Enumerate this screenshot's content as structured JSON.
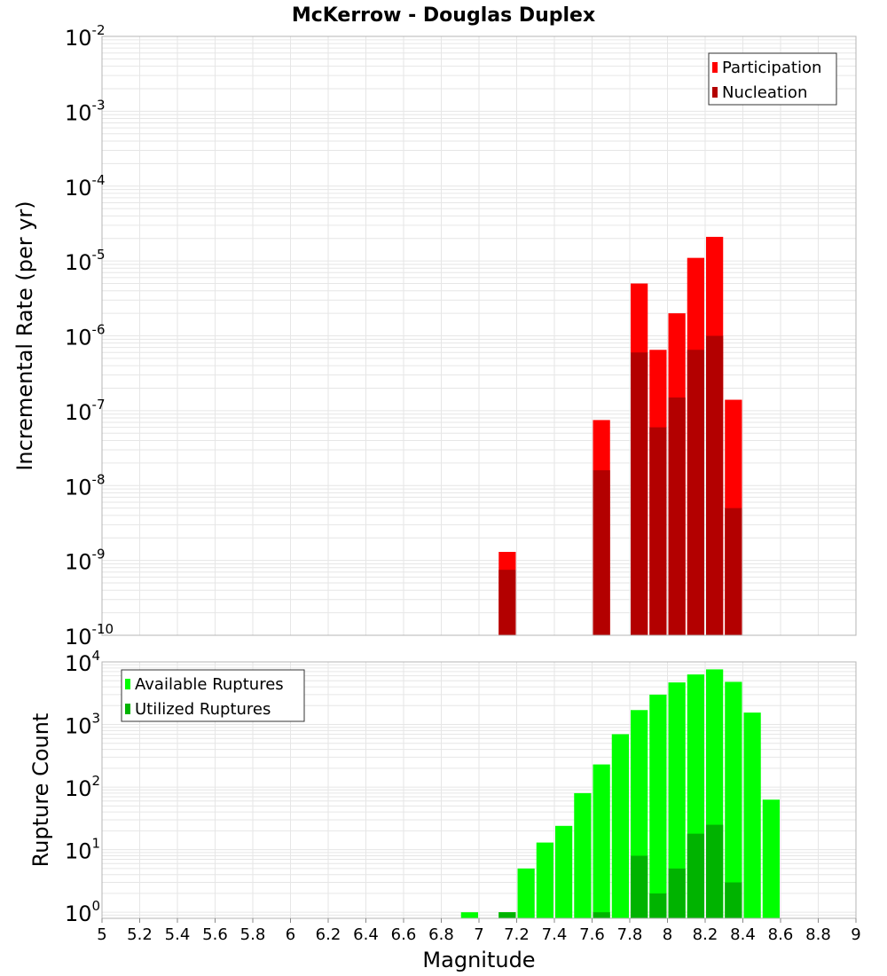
{
  "title": "McKerrow - Douglas Duplex",
  "x_axis": {
    "label": "Magnitude",
    "range": [
      5,
      9
    ],
    "ticks": [
      "5",
      "5.2",
      "5.4",
      "5.6",
      "5.8",
      "6",
      "6.2",
      "6.4",
      "6.6",
      "6.8",
      "7",
      "7.2",
      "7.4",
      "7.6",
      "7.8",
      "8",
      "8.2",
      "8.4",
      "8.6",
      "8.8",
      "9"
    ]
  },
  "colors": {
    "participation": "#ff0000",
    "nucleation": "#b30000",
    "available": "#00ff00",
    "utilized": "#00b300",
    "grid": "#e6e6e6",
    "frame": "#b4b4b4"
  },
  "chart_data": [
    {
      "type": "bar",
      "panel": "top",
      "ylabel": "Incremental Rate (per yr)",
      "yscale": "log",
      "ylim": [
        1e-10,
        0.01
      ],
      "y_tick_base": "10",
      "y_tick_exponents": [
        "-10",
        "-9",
        "-8",
        "-7",
        "-6",
        "-5",
        "-4",
        "-3",
        "-2"
      ],
      "bar_width": 0.1,
      "legend_position": "top-right",
      "series": [
        {
          "name": "Participation",
          "color": "#ff0000",
          "x": [
            7.15,
            7.65,
            7.85,
            7.95,
            8.05,
            8.15,
            8.25,
            8.35
          ],
          "values": [
            1.3e-09,
            7.5e-08,
            5e-06,
            6.5e-07,
            2e-06,
            1.1e-05,
            2.1e-05,
            1.4e-07
          ]
        },
        {
          "name": "Nucleation",
          "color": "#b30000",
          "x": [
            7.15,
            7.65,
            7.85,
            7.95,
            8.05,
            8.15,
            8.25,
            8.35
          ],
          "values": [
            7.5e-10,
            1.6e-08,
            6e-07,
            6e-08,
            1.5e-07,
            6.5e-07,
            1e-06,
            5e-09
          ]
        }
      ]
    },
    {
      "type": "bar",
      "panel": "bottom",
      "ylabel": "Rupture Count",
      "yscale": "log",
      "ylim": [
        0.8,
        10000
      ],
      "y_tick_base": "10",
      "y_tick_exponents": [
        "0",
        "1",
        "2",
        "3",
        "4"
      ],
      "bar_width": 0.1,
      "legend_position": "top-left",
      "series": [
        {
          "name": "Available Ruptures",
          "color": "#00ff00",
          "x": [
            6.95,
            7.15,
            7.25,
            7.35,
            7.45,
            7.55,
            7.65,
            7.75,
            7.85,
            7.95,
            8.05,
            8.15,
            8.25,
            8.35,
            8.45,
            8.55
          ],
          "values": [
            1,
            1,
            5,
            13,
            24,
            80,
            230,
            700,
            1700,
            3000,
            4700,
            6300,
            7600,
            4800,
            1550,
            63
          ]
        },
        {
          "name": "Utilized Ruptures",
          "color": "#00b300",
          "x": [
            7.15,
            7.65,
            7.85,
            7.95,
            8.05,
            8.15,
            8.25,
            8.35
          ],
          "values": [
            1,
            1,
            8,
            2,
            5,
            18,
            25,
            3
          ]
        }
      ]
    }
  ]
}
